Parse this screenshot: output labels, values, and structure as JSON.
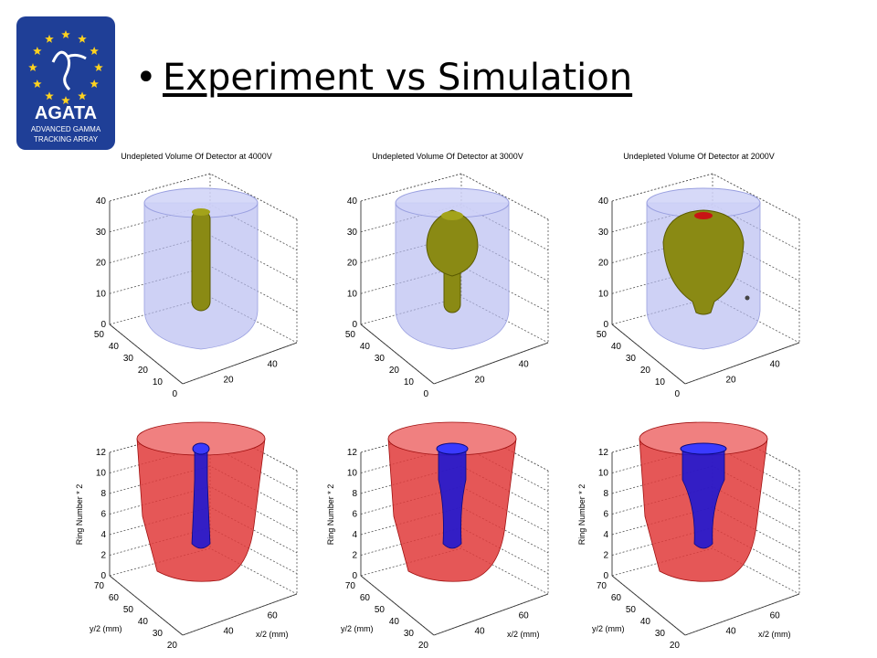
{
  "slide": {
    "title": "Experiment vs Simulation"
  },
  "logo": {
    "name": "AGATA",
    "line1": "ADVANCED GAMMA",
    "line2": "TRACKING ARRAY",
    "colors": {
      "background": "#1f3f97",
      "stars": "#ffd21f",
      "text": "#ffffff"
    }
  },
  "top_row": [
    {
      "title": "Undepleted Volume Of Detector at 4000V",
      "z_ticks": [
        "0",
        "10",
        "20",
        "30",
        "40"
      ],
      "y_ticks": [
        "50",
        "40",
        "30",
        "20",
        "10",
        "0"
      ],
      "x_ticks": [
        "20",
        "40"
      ],
      "detector_color": "#b4b8ef",
      "volume_color": "#8a8a14",
      "volume_shape": "rod"
    },
    {
      "title": "Undepleted Volume Of Detector at 3000V",
      "z_ticks": [
        "0",
        "10",
        "20",
        "30",
        "40"
      ],
      "y_ticks": [
        "50",
        "40",
        "30",
        "20",
        "10",
        "0"
      ],
      "x_ticks": [
        "20",
        "40"
      ],
      "detector_color": "#b4b8ef",
      "volume_color": "#8a8a14",
      "volume_shape": "bulb"
    },
    {
      "title": "Undepleted Volume Of Detector at 2000V",
      "z_ticks": [
        "0",
        "10",
        "20",
        "30",
        "40"
      ],
      "y_ticks": [
        "50",
        "40",
        "30",
        "20",
        "10",
        "0"
      ],
      "x_ticks": [
        "20",
        "40"
      ],
      "detector_color": "#b4b8ef",
      "volume_color": "#8a8a14",
      "volume_shape": "egg"
    }
  ],
  "bottom_row": [
    {
      "ylabel": "Ring Number * 2",
      "ylabel2": "y/2 (mm)",
      "xlabel": "x/2 (mm)",
      "z_ticks": [
        "0",
        "2",
        "4",
        "6",
        "8",
        "10",
        "12"
      ],
      "y_ticks": [
        "70",
        "60",
        "50",
        "40",
        "30",
        "20"
      ],
      "x_ticks": [
        "40",
        "60"
      ],
      "shell_color": "#e03a3a",
      "core_color": "#1414d8"
    },
    {
      "ylabel": "Ring Number * 2",
      "ylabel2": "y/2 (mm)",
      "xlabel": "x/2 (mm)",
      "z_ticks": [
        "0",
        "2",
        "4",
        "6",
        "8",
        "10",
        "12"
      ],
      "y_ticks": [
        "70",
        "60",
        "50",
        "40",
        "30",
        "20"
      ],
      "x_ticks": [
        "40",
        "60"
      ],
      "shell_color": "#e03a3a",
      "core_color": "#1414d8"
    },
    {
      "ylabel": "Ring Number * 2",
      "ylabel2": "y/2 (mm)",
      "xlabel": "x/2 (mm)",
      "z_ticks": [
        "0",
        "2",
        "4",
        "6",
        "8",
        "10",
        "12"
      ],
      "y_ticks": [
        "70",
        "60",
        "50",
        "40",
        "30",
        "20"
      ],
      "x_ticks": [
        "40",
        "60"
      ],
      "shell_color": "#e03a3a",
      "core_color": "#1414d8"
    }
  ]
}
